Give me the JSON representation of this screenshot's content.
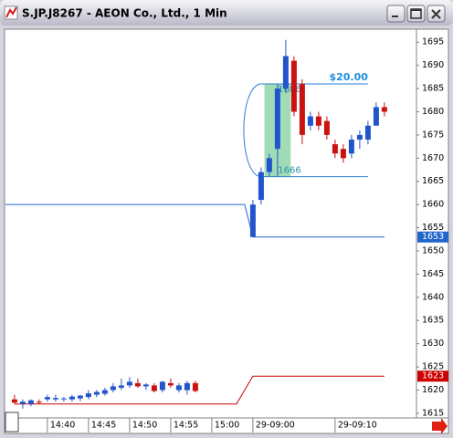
{
  "chart_data": {
    "type": "candlestick",
    "title": "S.JP.J8267 - AEON Co., Ltd., 1 Min",
    "up_color": "#2255cc",
    "down_color": "#cc1111",
    "xlim": [
      -5.1,
      44.9
    ],
    "xticks": [
      {
        "value": 0,
        "label": "14:40"
      },
      {
        "value": 5,
        "label": "14:45"
      },
      {
        "value": 10,
        "label": "14:50"
      },
      {
        "value": 15,
        "label": "14:55"
      },
      {
        "value": 20,
        "label": "15:00"
      },
      {
        "value": 25,
        "label": "29-09:00"
      },
      {
        "value": 35,
        "label": "29-09:10"
      }
    ],
    "ylim": [
      1614,
      1697.6
    ],
    "yticks": [
      1615,
      1620,
      1625,
      1630,
      1635,
      1640,
      1645,
      1650,
      1655,
      1660,
      1665,
      1670,
      1675,
      1680,
      1685,
      1690,
      1695
    ],
    "series": [
      {
        "x": [
          -4,
          -3,
          -2,
          -1,
          0,
          1,
          2,
          3,
          4,
          5,
          6,
          7,
          8,
          9,
          10,
          11,
          12,
          13,
          14,
          15,
          16,
          17,
          18,
          25,
          26,
          27,
          28,
          29,
          30,
          31,
          32,
          33,
          34,
          35,
          36,
          37,
          38,
          39,
          40,
          41
        ],
        "open": [
          1618,
          1617,
          1617,
          1617.5,
          1618,
          1618,
          1618,
          1618,
          1618.2,
          1618.5,
          1619,
          1619.2,
          1620,
          1620.5,
          1621,
          1621.5,
          1620.8,
          1621,
          1620,
          1621.5,
          1620,
          1620,
          1621.5,
          1653,
          1661,
          1667,
          1672,
          1685,
          1691,
          1686,
          1677,
          1679,
          1678,
          1673,
          1672,
          1671,
          1674,
          1674,
          1677,
          1681
        ],
        "high": [
          1619,
          1618,
          1618,
          1618,
          1619,
          1619,
          1618.5,
          1619,
          1619,
          1620,
          1620,
          1620.5,
          1621.5,
          1622.5,
          1622.8,
          1622.5,
          1621.5,
          1621.5,
          1622,
          1622.5,
          1621.5,
          1622,
          1622,
          1661,
          1668,
          1671,
          1686,
          1695.5,
          1692,
          1687,
          1680,
          1680,
          1679,
          1674,
          1673,
          1675,
          1676,
          1678,
          1682,
          1682
        ],
        "low": [
          1617,
          1616,
          1616.5,
          1617,
          1617.5,
          1617.5,
          1617.5,
          1617.5,
          1617.6,
          1618,
          1618.5,
          1618.8,
          1619.5,
          1620,
          1620.5,
          1620.5,
          1620,
          1619.5,
          1619.5,
          1620.5,
          1619.5,
          1619,
          1619.5,
          1653,
          1660,
          1666,
          1666,
          1684,
          1679,
          1673,
          1676,
          1676,
          1674,
          1670,
          1669,
          1670,
          1672,
          1673,
          1677,
          1679
        ],
        "close": [
          1617.3,
          1617.5,
          1617.8,
          1617.3,
          1618.5,
          1618.3,
          1618.2,
          1618.6,
          1618.8,
          1619.3,
          1619.6,
          1620,
          1620.8,
          1621,
          1621.8,
          1620.8,
          1621.2,
          1619.8,
          1621.8,
          1621,
          1621,
          1621.5,
          1619.8,
          1660,
          1667,
          1670,
          1685,
          1692,
          1680,
          1675,
          1679,
          1677,
          1675,
          1671,
          1670,
          1674,
          1675,
          1677,
          1681,
          1680
        ]
      }
    ],
    "lines": [
      {
        "color": "#2266cc",
        "x": [
          -5.1,
          24,
          25,
          41
        ],
        "values": [
          1660,
          1660,
          1653,
          1653
        ]
      },
      {
        "color": "#cc0000",
        "x": [
          -4,
          23,
          25,
          41
        ],
        "values": [
          1617,
          1617,
          1623,
          1623
        ]
      }
    ],
    "range": {
      "from": 1666,
      "to": 1686,
      "label": "$20.00",
      "x": [
        25,
        39
      ],
      "box_x": [
        26.4,
        29.6
      ],
      "color": "#2a7fd0",
      "box_color": "#8fd6a8"
    }
  }
}
